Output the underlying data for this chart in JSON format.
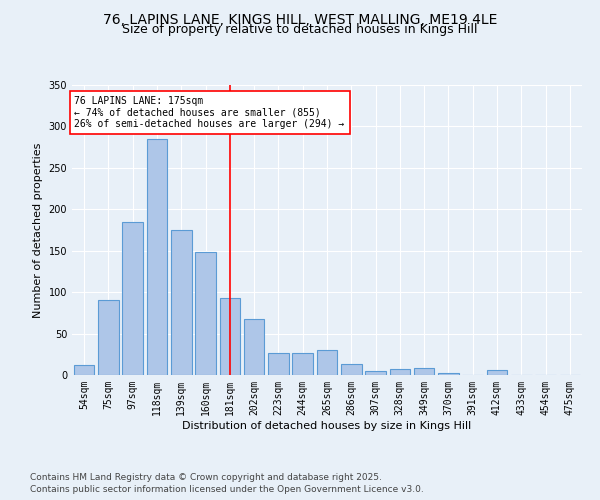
{
  "title_line1": "76, LAPINS LANE, KINGS HILL, WEST MALLING, ME19 4LE",
  "title_line2": "Size of property relative to detached houses in Kings Hill",
  "xlabel": "Distribution of detached houses by size in Kings Hill",
  "ylabel": "Number of detached properties",
  "categories": [
    "54sqm",
    "75sqm",
    "97sqm",
    "118sqm",
    "139sqm",
    "160sqm",
    "181sqm",
    "202sqm",
    "223sqm",
    "244sqm",
    "265sqm",
    "286sqm",
    "307sqm",
    "328sqm",
    "349sqm",
    "370sqm",
    "391sqm",
    "412sqm",
    "433sqm",
    "454sqm",
    "475sqm"
  ],
  "values": [
    12,
    90,
    185,
    285,
    175,
    148,
    93,
    68,
    27,
    27,
    30,
    13,
    5,
    7,
    8,
    3,
    0,
    6,
    0,
    0,
    0
  ],
  "bar_color": "#aec6e8",
  "bar_edge_color": "#5b9bd5",
  "bar_linewidth": 0.8,
  "vline_x": 6.0,
  "vline_color": "red",
  "vline_linewidth": 1.2,
  "annotation_text": "76 LAPINS LANE: 175sqm\n← 74% of detached houses are smaller (855)\n26% of semi-detached houses are larger (294) →",
  "annotation_box_color": "white",
  "annotation_box_edge_color": "red",
  "annotation_fontsize": 7.0,
  "ylim": [
    0,
    350
  ],
  "yticks": [
    0,
    50,
    100,
    150,
    200,
    250,
    300,
    350
  ],
  "background_color": "#e8f0f8",
  "plot_background_color": "#e8f0f8",
  "footer_line1": "Contains HM Land Registry data © Crown copyright and database right 2025.",
  "footer_line2": "Contains public sector information licensed under the Open Government Licence v3.0.",
  "footer_fontsize": 6.5,
  "title_fontsize1": 10,
  "title_fontsize2": 9,
  "xlabel_fontsize": 8,
  "ylabel_fontsize": 8,
  "tick_fontsize": 7,
  "grid_color": "white",
  "grid_linewidth": 0.8
}
